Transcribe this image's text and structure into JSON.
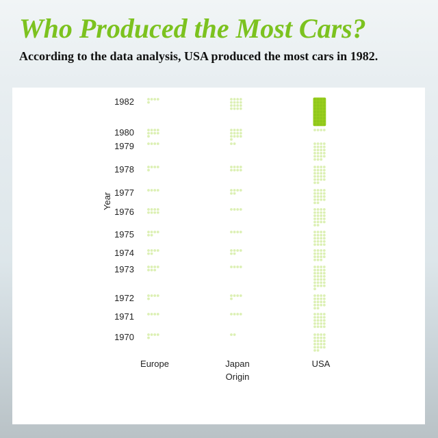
{
  "page": {
    "title": "Who Produced the Most Cars?",
    "subtitle": "According to the data analysis, USA produced the most cars in 1982."
  },
  "colors": {
    "title": "#7cc21f",
    "dot": "#dcf0b4",
    "highlight": "#9acd1e",
    "highlight_dot": "#8fc81a"
  },
  "chart_data": {
    "type": "scatter",
    "title": "",
    "xlabel": "Origin",
    "ylabel": "Year",
    "categories": [
      "Europe",
      "Japan",
      "USA"
    ],
    "years": [
      1970,
      1971,
      1972,
      1973,
      1974,
      1975,
      1976,
      1977,
      1978,
      1979,
      1980,
      1982
    ],
    "y_tick_labels": [
      "1970",
      "1971",
      "1972",
      "1973",
      "1974",
      "1975",
      "1976",
      "1977",
      "1978",
      "1979",
      "1980",
      "1982"
    ],
    "dots_per_row": 4,
    "counts": {
      "Europe": [
        5,
        4,
        5,
        7,
        6,
        6,
        8,
        4,
        5,
        4,
        9,
        5
      ],
      "Japan": [
        2,
        4,
        5,
        4,
        6,
        4,
        4,
        6,
        8,
        2,
        13,
        16
      ],
      "USA": [
        22,
        20,
        18,
        29,
        15,
        20,
        22,
        18,
        22,
        23,
        4,
        36
      ]
    },
    "highlight": {
      "category": "USA",
      "year": 1982
    },
    "grid": false,
    "legend": "none"
  }
}
